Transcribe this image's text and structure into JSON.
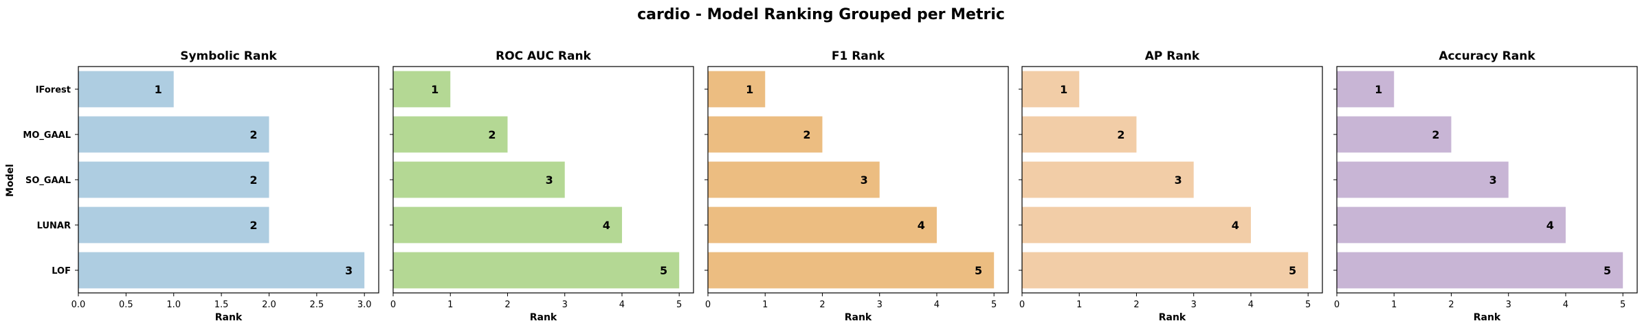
{
  "figure": {
    "title": "cardio - Model Ranking Grouped per Metric",
    "y_axis_label": "Model"
  },
  "chart_data": [
    {
      "type": "bar",
      "orientation": "horizontal",
      "title": "Symbolic Rank",
      "xlabel": "Rank",
      "ylabel": "Model",
      "categories": [
        "IForest",
        "MO_GAAL",
        "SO_GAAL",
        "LUNAR",
        "LOF"
      ],
      "values": [
        1,
        2,
        2,
        2,
        3
      ],
      "value_labels": [
        "1",
        "2",
        "2",
        "2",
        "3"
      ],
      "xlim": [
        0,
        3.15
      ],
      "xticks": [
        0,
        0.5,
        1,
        1.5,
        2,
        2.5,
        3
      ],
      "xtick_labels": [
        "0.0",
        "0.5",
        "1.0",
        "1.5",
        "2.0",
        "2.5",
        "3.0"
      ],
      "grid": false,
      "color": "#aecde1"
    },
    {
      "type": "bar",
      "orientation": "horizontal",
      "title": "ROC AUC Rank",
      "xlabel": "Rank",
      "categories": [
        "IForest",
        "MO_GAAL",
        "SO_GAAL",
        "LUNAR",
        "LOF"
      ],
      "values": [
        1,
        2,
        3,
        4,
        5
      ],
      "value_labels": [
        "1",
        "2",
        "3",
        "4",
        "5"
      ],
      "xlim": [
        0,
        5.25
      ],
      "xticks": [
        0,
        1,
        2,
        3,
        4,
        5
      ],
      "xtick_labels": [
        "0",
        "1",
        "2",
        "3",
        "4",
        "5"
      ],
      "grid": false,
      "color": "#b4d894"
    },
    {
      "type": "bar",
      "orientation": "horizontal",
      "title": "F1 Rank",
      "xlabel": "Rank",
      "categories": [
        "IForest",
        "MO_GAAL",
        "SO_GAAL",
        "LUNAR",
        "LOF"
      ],
      "values": [
        1,
        2,
        3,
        4,
        5
      ],
      "value_labels": [
        "1",
        "2",
        "3",
        "4",
        "5"
      ],
      "xlim": [
        0,
        5.25
      ],
      "xticks": [
        0,
        1,
        2,
        3,
        4,
        5
      ],
      "xtick_labels": [
        "0",
        "1",
        "2",
        "3",
        "4",
        "5"
      ],
      "grid": false,
      "color": "#ecbd81"
    },
    {
      "type": "bar",
      "orientation": "horizontal",
      "title": "AP Rank",
      "xlabel": "Rank",
      "categories": [
        "IForest",
        "MO_GAAL",
        "SO_GAAL",
        "LUNAR",
        "LOF"
      ],
      "values": [
        1,
        2,
        3,
        4,
        5
      ],
      "value_labels": [
        "1",
        "2",
        "3",
        "4",
        "5"
      ],
      "xlim": [
        0,
        5.25
      ],
      "xticks": [
        0,
        1,
        2,
        3,
        4,
        5
      ],
      "xtick_labels": [
        "0",
        "1",
        "2",
        "3",
        "4",
        "5"
      ],
      "grid": false,
      "color": "#f2cda7"
    },
    {
      "type": "bar",
      "orientation": "horizontal",
      "title": "Accuracy Rank",
      "xlabel": "Rank",
      "categories": [
        "IForest",
        "MO_GAAL",
        "SO_GAAL",
        "LUNAR",
        "LOF"
      ],
      "values": [
        1,
        2,
        3,
        4,
        5
      ],
      "value_labels": [
        "1",
        "2",
        "3",
        "4",
        "5"
      ],
      "xlim": [
        0,
        5.25
      ],
      "xticks": [
        0,
        1,
        2,
        3,
        4,
        5
      ],
      "xtick_labels": [
        "0",
        "1",
        "2",
        "3",
        "4",
        "5"
      ],
      "grid": false,
      "color": "#c8b5d5"
    }
  ]
}
